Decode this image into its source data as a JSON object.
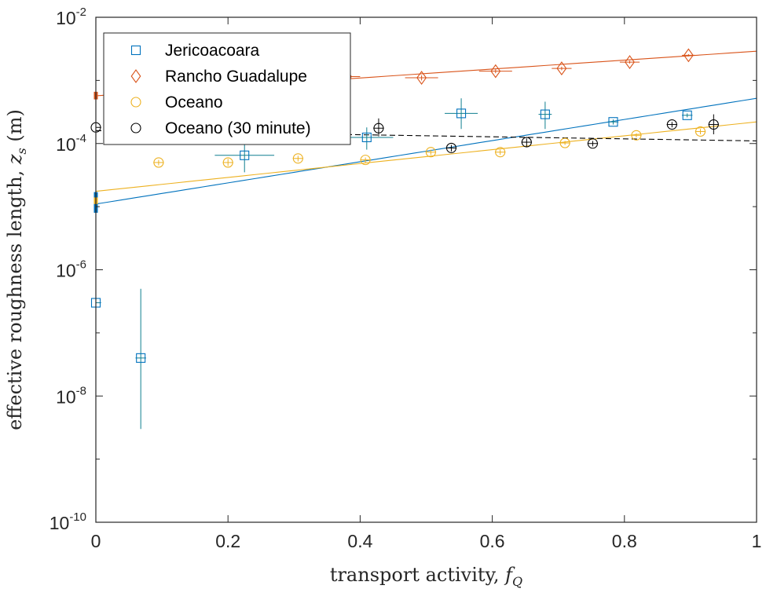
{
  "chart_data": {
    "type": "scatter",
    "xlabel_text": "transport activity, ",
    "xlabel_var": "f",
    "xlabel_sub": "Q",
    "ylabel_text": "effective roughness length, ",
    "ylabel_var": "z",
    "ylabel_sub": "s",
    "ylabel_unit": " (m)",
    "xlim": [
      0,
      1
    ],
    "ylim_log10": [
      -10,
      -2
    ],
    "yscale": "log",
    "xticks": [
      "0",
      "0.2",
      "0.4",
      "0.6",
      "0.8",
      "1"
    ],
    "yticks": [
      {
        "base": "10",
        "exp": "-10",
        "log": -10
      },
      {
        "base": "10",
        "exp": "-8",
        "log": -8
      },
      {
        "base": "10",
        "exp": "-6",
        "log": -6
      },
      {
        "base": "10",
        "exp": "-4",
        "log": -4
      },
      {
        "base": "10",
        "exp": "-2",
        "log": -2
      }
    ],
    "legend_position": "top-left",
    "series": [
      {
        "name": "Jericoacoara",
        "marker": "square",
        "color": "#0072BD",
        "errcolor": "#0f7f8f",
        "points": [
          {
            "x": 0.0,
            "y": 3e-07,
            "xerr": 0.0,
            "ylo": 1.2e-07,
            "yhi": 8e-07
          },
          {
            "x": 0.068,
            "y": 4e-08,
            "xerr": 0.0,
            "ylo": 3e-09,
            "yhi": 5e-07
          },
          {
            "x": 0.225,
            "y": 6.5e-05,
            "xerr": 0.045,
            "ylo": 3.5e-05,
            "yhi": 0.00011
          },
          {
            "x": 0.41,
            "y": 0.000125,
            "xerr": 0.04,
            "ylo": 8e-05,
            "yhi": 0.00018
          },
          {
            "x": 0.553,
            "y": 0.0003,
            "xerr": 0.025,
            "ylo": 0.00017,
            "yhi": 0.00052
          },
          {
            "x": 0.68,
            "y": 0.00029,
            "xerr": 0.01,
            "ylo": 0.00017,
            "yhi": 0.00046
          },
          {
            "x": 0.783,
            "y": 0.00022,
            "xerr": 0.008,
            "ylo": 0.0002,
            "yhi": 0.00024
          },
          {
            "x": 0.895,
            "y": 0.00028,
            "xerr": 0.008,
            "ylo": 0.00026,
            "yhi": 0.0003
          }
        ],
        "fit": {
          "x": [
            0,
            1
          ],
          "y": [
            1.1e-05,
            0.00052
          ]
        },
        "intercept_bar": {
          "x": 0.0,
          "ylo": 8e-06,
          "yhi": 1.7e-05
        }
      },
      {
        "name": "Rancho Guadalupe",
        "marker": "diamond",
        "color": "#D95319",
        "errcolor": "#D95319",
        "points": [
          {
            "x": 0.38,
            "y": 0.00115,
            "xerr": 0.02,
            "ylo": 0.0011,
            "yhi": 0.0012
          },
          {
            "x": 0.493,
            "y": 0.0011,
            "xerr": 0.025,
            "ylo": 0.001,
            "yhi": 0.0012
          },
          {
            "x": 0.605,
            "y": 0.0014,
            "xerr": 0.025,
            "ylo": 0.0013,
            "yhi": 0.0015
          },
          {
            "x": 0.705,
            "y": 0.00155,
            "xerr": 0.015,
            "ylo": 0.00145,
            "yhi": 0.00165
          },
          {
            "x": 0.808,
            "y": 0.00195,
            "xerr": 0.015,
            "ylo": 0.00185,
            "yhi": 0.00205
          },
          {
            "x": 0.897,
            "y": 0.0025,
            "xerr": 0.01,
            "ylo": 0.0024,
            "yhi": 0.0026
          }
        ],
        "fit": {
          "x": [
            0,
            1
          ],
          "y": [
            0.00057,
            0.0029
          ]
        },
        "intercept_bar": {
          "x": 0.0,
          "ylo": 0.0005,
          "yhi": 0.00066
        }
      },
      {
        "name": "Oceano",
        "marker": "circle",
        "color": "#EDB120",
        "errcolor": "#EDB120",
        "points": [
          {
            "x": 0.095,
            "y": 5e-05,
            "xerr": 0.0,
            "ylo": 4.5e-05,
            "yhi": 5.5e-05
          },
          {
            "x": 0.2,
            "y": 5e-05,
            "xerr": 0.0,
            "ylo": 4.4e-05,
            "yhi": 5.7e-05
          },
          {
            "x": 0.306,
            "y": 5.8e-05,
            "xerr": 0.0,
            "ylo": 5.2e-05,
            "yhi": 6.4e-05
          },
          {
            "x": 0.408,
            "y": 5.5e-05,
            "xerr": 0.0,
            "ylo": 5e-05,
            "yhi": 6e-05
          },
          {
            "x": 0.507,
            "y": 7.3e-05,
            "xerr": 0.0,
            "ylo": 6.6e-05,
            "yhi": 8e-05
          },
          {
            "x": 0.612,
            "y": 7.3e-05,
            "xerr": 0.0,
            "ylo": 6.6e-05,
            "yhi": 8e-05
          },
          {
            "x": 0.71,
            "y": 0.000102,
            "xerr": 0.0,
            "ylo": 9.5e-05,
            "yhi": 0.00011
          },
          {
            "x": 0.818,
            "y": 0.000135,
            "xerr": 0.0,
            "ylo": 0.000125,
            "yhi": 0.000145
          },
          {
            "x": 0.915,
            "y": 0.000155,
            "xerr": 0.0,
            "ylo": 0.00014,
            "yhi": 0.00017
          }
        ],
        "fit": {
          "x": [
            0,
            1
          ],
          "y": [
            1.75e-05,
            0.00022
          ]
        },
        "intercept_bar": {
          "x": 0.0,
          "ylo": 1.1e-05,
          "yhi": 1.4e-05
        }
      },
      {
        "name": "Oceano (30 minute)",
        "marker": "circle",
        "color": "#000000",
        "errcolor": "#000000",
        "points": [
          {
            "x": 0.0,
            "y": 0.00018,
            "xerr": 0.0,
            "ylo": 0.00016,
            "yhi": 0.0002
          },
          {
            "x": 0.428,
            "y": 0.000175,
            "xerr": 0.0,
            "ylo": 0.00013,
            "yhi": 0.00025
          },
          {
            "x": 0.538,
            "y": 8.5e-05,
            "xerr": 0.0,
            "ylo": 7.5e-05,
            "yhi": 9.5e-05
          },
          {
            "x": 0.652,
            "y": 0.000105,
            "xerr": 0.0,
            "ylo": 9e-05,
            "yhi": 0.00012
          },
          {
            "x": 0.752,
            "y": 0.0001,
            "xerr": 0.0,
            "ylo": 9e-05,
            "yhi": 0.00011
          },
          {
            "x": 0.872,
            "y": 0.0002,
            "xerr": 0.0,
            "ylo": 0.00018,
            "yhi": 0.00022
          },
          {
            "x": 0.935,
            "y": 0.0002,
            "xerr": 0.0,
            "ylo": 0.00014,
            "yhi": 0.00029
          }
        ],
        "fit": {
          "x": [
            0,
            1
          ],
          "y": [
            0.00016,
            0.00011
          ],
          "dashed": true
        }
      }
    ]
  }
}
